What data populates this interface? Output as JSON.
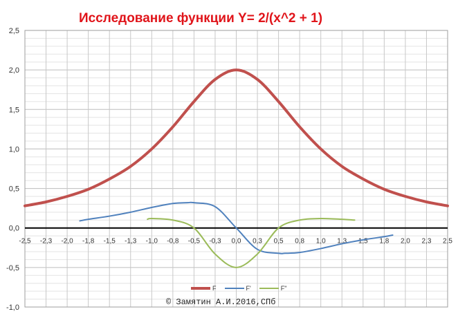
{
  "chart_data": {
    "type": "line",
    "title": "Исследование функции Y= 2/(x^2 + 1)",
    "copyright": "© Замятин А.И.2016,СПб",
    "xlim": [
      -2.5,
      2.5
    ],
    "ylim": [
      -1.0,
      2.5
    ],
    "x_ticks": [
      "-2,5",
      "-2,3",
      "-2,0",
      "-1,8",
      "-1,5",
      "-1,3",
      "-1,0",
      "-0,8",
      "-0,5",
      "-0,3",
      "0,0",
      "0,3",
      "0,5",
      "0,8",
      "1,0",
      "1,3",
      "1,5",
      "1,8",
      "2,0",
      "2,3",
      "2,5"
    ],
    "x_tick_values": [
      -2.5,
      -2.25,
      -2.0,
      -1.75,
      -1.5,
      -1.25,
      -1.0,
      -0.75,
      -0.5,
      -0.25,
      0.0,
      0.25,
      0.5,
      0.75,
      1.0,
      1.25,
      1.5,
      1.75,
      2.0,
      2.25,
      2.5
    ],
    "y_ticks": [
      "2,5",
      "2,0",
      "1,5",
      "1,0",
      "0,5",
      "0,0",
      "-0,5",
      "-1,0"
    ],
    "y_tick_values": [
      2.5,
      2.0,
      1.5,
      1.0,
      0.5,
      0.0,
      -0.5,
      -1.0
    ],
    "grid": true,
    "legend": "bottom",
    "series": [
      {
        "name": "F",
        "color": "#c0504d",
        "x": [
          -2.5,
          -2.25,
          -2.0,
          -1.75,
          -1.5,
          -1.25,
          -1.0,
          -0.75,
          -0.5,
          -0.25,
          0.0,
          0.25,
          0.5,
          0.75,
          1.0,
          1.25,
          1.5,
          1.75,
          2.0,
          2.25,
          2.5
        ],
        "y": [
          0.28,
          0.33,
          0.4,
          0.49,
          0.62,
          0.78,
          1.0,
          1.28,
          1.6,
          1.88,
          2.0,
          1.88,
          1.6,
          1.28,
          1.0,
          0.78,
          0.62,
          0.49,
          0.4,
          0.33,
          0.28
        ]
      },
      {
        "name": "F'",
        "color": "#4f81bd",
        "x": [
          -1.85,
          -1.75,
          -1.5,
          -1.25,
          -1.0,
          -0.75,
          -0.577,
          -0.5,
          -0.25,
          0.0,
          0.25,
          0.5,
          0.577,
          0.75,
          1.0,
          1.25,
          1.5,
          1.75,
          1.85
        ],
        "y": [
          0.09,
          0.11,
          0.15,
          0.2,
          0.26,
          0.31,
          0.32,
          0.32,
          0.27,
          0.0,
          -0.27,
          -0.32,
          -0.32,
          -0.31,
          -0.26,
          -0.2,
          -0.15,
          -0.11,
          -0.09
        ],
        "values_per_x": "derivative"
      },
      {
        "name": "F\"",
        "color": "#9bbb59",
        "x": [
          -1.05,
          -1.0,
          -0.75,
          -0.5,
          -0.25,
          0.0,
          0.25,
          0.5,
          0.75,
          1.0,
          1.25,
          1.4
        ],
        "y": [
          0.11,
          0.12,
          0.1,
          0.0,
          -0.33,
          -0.5,
          -0.33,
          0.0,
          0.1,
          0.12,
          0.11,
          0.1
        ]
      }
    ]
  }
}
